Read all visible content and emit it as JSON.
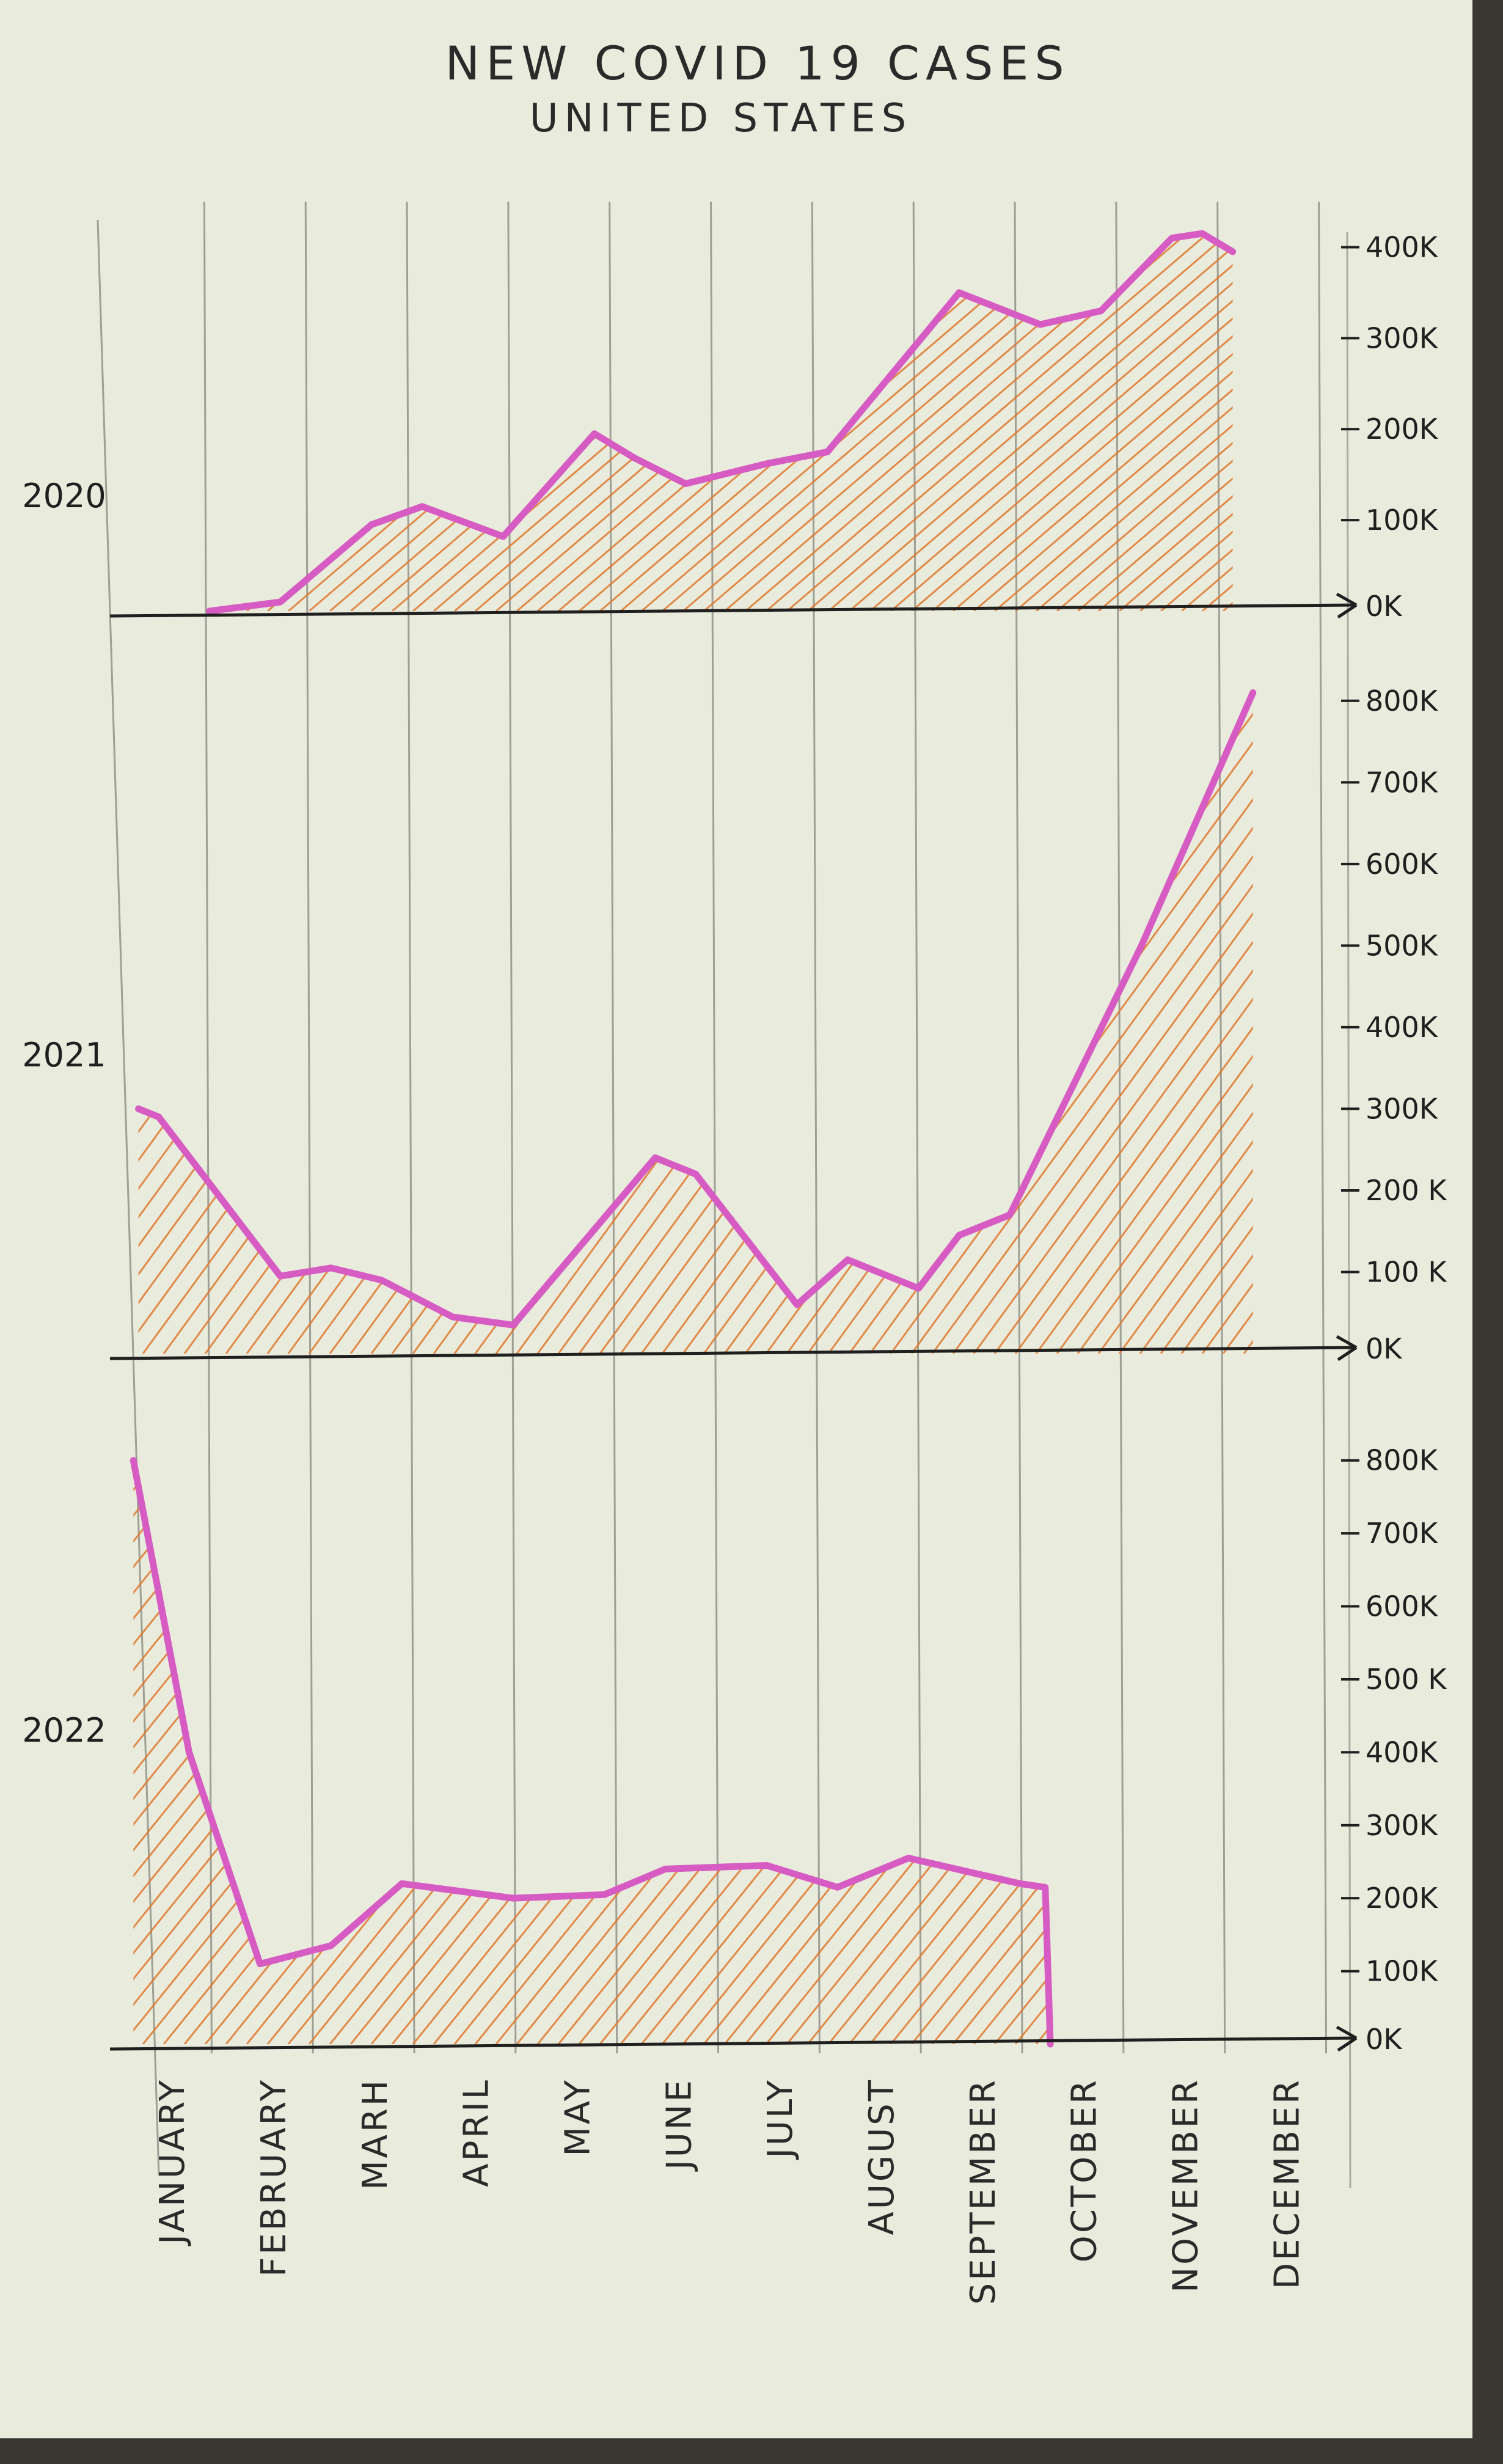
{
  "colors": {
    "paper": "#e9ebdc",
    "line": "#d65cc4",
    "hatch": "#e0782e",
    "pencil": "#6e6e68",
    "ink": "#1f1f1f"
  },
  "chart_data": {
    "type": "area",
    "title": "NEW COVID 19 CASES",
    "subtitle": "UNITED STATES",
    "months": [
      "JANUARY",
      "FEBRUARY",
      "MARH",
      "APRIL",
      "MAY",
      "JUNE",
      "JULY",
      "AUGUST",
      "SEPTEMBER",
      "OCTOBER",
      "NOVEMBER",
      "DECEMBER"
    ],
    "panels": [
      {
        "name": "2020",
        "ylim": [
          0,
          450000
        ],
        "yticks": [
          {
            "label": "0K",
            "value": 0
          },
          {
            "label": "100K",
            "value": 100000
          },
          {
            "label": "200K",
            "value": 200000
          },
          {
            "label": "300K",
            "value": 300000
          },
          {
            "label": "400K",
            "value": 400000
          }
        ],
        "points": [
          [
            0.8,
            0
          ],
          [
            1.5,
            10000
          ],
          [
            2.4,
            95000
          ],
          [
            2.9,
            115000
          ],
          [
            3.7,
            82000
          ],
          [
            4.6,
            195000
          ],
          [
            5.0,
            168000
          ],
          [
            5.5,
            140000
          ],
          [
            6.3,
            162000
          ],
          [
            6.9,
            175000
          ],
          [
            8.2,
            350000
          ],
          [
            9.0,
            315000
          ],
          [
            9.6,
            330000
          ],
          [
            10.3,
            410000
          ],
          [
            10.6,
            415000
          ],
          [
            10.9,
            395000
          ]
        ]
      },
      {
        "name": "2021",
        "ylim": [
          0,
          850000
        ],
        "yticks": [
          {
            "label": "0K",
            "value": 0
          },
          {
            "label": "100 K",
            "value": 100000
          },
          {
            "label": "200 K",
            "value": 200000
          },
          {
            "label": "300K",
            "value": 300000
          },
          {
            "label": "400K",
            "value": 400000
          },
          {
            "label": "500K",
            "value": 500000
          },
          {
            "label": "600K",
            "value": 600000
          },
          {
            "label": "700K",
            "value": 700000
          },
          {
            "label": "800K",
            "value": 800000
          }
        ],
        "points": [
          [
            0.1,
            300000
          ],
          [
            0.3,
            290000
          ],
          [
            1.5,
            95000
          ],
          [
            2.0,
            105000
          ],
          [
            2.5,
            90000
          ],
          [
            3.2,
            45000
          ],
          [
            3.8,
            35000
          ],
          [
            5.2,
            240000
          ],
          [
            5.6,
            220000
          ],
          [
            6.6,
            60000
          ],
          [
            7.1,
            115000
          ],
          [
            7.8,
            80000
          ],
          [
            8.2,
            145000
          ],
          [
            8.7,
            170000
          ],
          [
            10.0,
            500000
          ],
          [
            11.1,
            810000
          ]
        ]
      },
      {
        "name": "2022",
        "ylim": [
          0,
          850000
        ],
        "yticks": [
          {
            "label": "0K",
            "value": 0
          },
          {
            "label": "100K",
            "value": 100000
          },
          {
            "label": "200K",
            "value": 200000
          },
          {
            "label": "300K",
            "value": 300000
          },
          {
            "label": "400K",
            "value": 400000
          },
          {
            "label": "500 K",
            "value": 500000
          },
          {
            "label": "600K",
            "value": 600000
          },
          {
            "label": "700K",
            "value": 700000
          },
          {
            "label": "800K",
            "value": 800000
          }
        ],
        "points": [
          [
            0.05,
            800000
          ],
          [
            0.6,
            400000
          ],
          [
            1.3,
            110000
          ],
          [
            2.0,
            135000
          ],
          [
            2.7,
            220000
          ],
          [
            3.8,
            200000
          ],
          [
            4.7,
            205000
          ],
          [
            5.3,
            240000
          ],
          [
            6.3,
            245000
          ],
          [
            7.0,
            215000
          ],
          [
            7.7,
            255000
          ],
          [
            8.8,
            220000
          ],
          [
            9.05,
            215000
          ],
          [
            9.1,
            0
          ]
        ]
      }
    ]
  }
}
